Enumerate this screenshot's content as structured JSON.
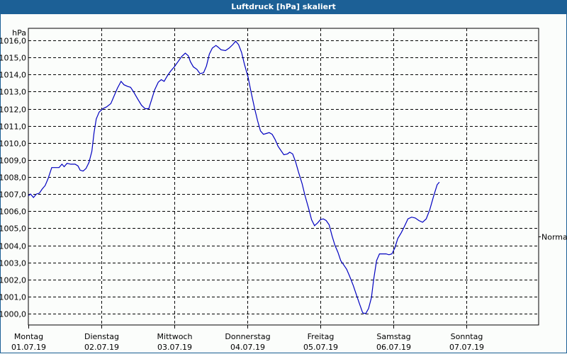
{
  "window": {
    "title": "Luftdruck [hPa] skaliert"
  },
  "chart_data": {
    "type": "line",
    "title": "Luftdruck [hPa] skaliert",
    "ylabel": "hPa",
    "xlabel": "",
    "ylim": [
      1000.0,
      1016.0
    ],
    "grid": true,
    "y_ticks": [
      "1016,0",
      "1015,0",
      "1014,0",
      "1013,0",
      "1012,0",
      "1011,0",
      "1010,0",
      "1009,0",
      "1008,0",
      "1007,0",
      "1006,0",
      "1005,0",
      "1004,0",
      "1003,0",
      "1002,0",
      "1001,0",
      "1000,0"
    ],
    "x_ticks": [
      {
        "day": "Montag",
        "date": "01.07.19"
      },
      {
        "day": "Dienstag",
        "date": "02.07.19"
      },
      {
        "day": "Mittwoch",
        "date": "03.07.19"
      },
      {
        "day": "Donnerstag",
        "date": "04.07.19"
      },
      {
        "day": "Freitag",
        "date": "05.07.19"
      },
      {
        "day": "Samstag",
        "date": "06.07.19"
      },
      {
        "day": "Sonntag",
        "date": "07.07.19"
      }
    ],
    "reference_marker": {
      "label": "Normal",
      "value": 1004.5
    },
    "line_color": "#0000c0",
    "series": [
      {
        "name": "Luftdruck",
        "unit": "hPa",
        "points_day_value": [
          [
            0.0,
            1006.9
          ],
          [
            0.03,
            1007.0
          ],
          [
            0.07,
            1006.8
          ],
          [
            0.11,
            1007.0
          ],
          [
            0.15,
            1007.05
          ],
          [
            0.19,
            1007.3
          ],
          [
            0.23,
            1007.5
          ],
          [
            0.27,
            1007.9
          ],
          [
            0.32,
            1008.55
          ],
          [
            0.38,
            1008.55
          ],
          [
            0.42,
            1008.55
          ],
          [
            0.46,
            1008.75
          ],
          [
            0.49,
            1008.6
          ],
          [
            0.53,
            1008.8
          ],
          [
            0.58,
            1008.75
          ],
          [
            0.64,
            1008.75
          ],
          [
            0.68,
            1008.65
          ],
          [
            0.71,
            1008.4
          ],
          [
            0.75,
            1008.35
          ],
          [
            0.79,
            1008.5
          ],
          [
            0.83,
            1008.85
          ],
          [
            0.87,
            1009.5
          ],
          [
            0.9,
            1010.6
          ],
          [
            0.93,
            1011.4
          ],
          [
            0.97,
            1011.8
          ],
          [
            1.02,
            1012.0
          ],
          [
            1.07,
            1012.1
          ],
          [
            1.13,
            1012.3
          ],
          [
            1.17,
            1012.7
          ],
          [
            1.22,
            1013.2
          ],
          [
            1.27,
            1013.6
          ],
          [
            1.31,
            1013.4
          ],
          [
            1.36,
            1013.3
          ],
          [
            1.4,
            1013.25
          ],
          [
            1.44,
            1013.0
          ],
          [
            1.5,
            1012.55
          ],
          [
            1.55,
            1012.2
          ],
          [
            1.6,
            1012.0
          ],
          [
            1.65,
            1012.0
          ],
          [
            1.69,
            1012.55
          ],
          [
            1.73,
            1013.1
          ],
          [
            1.78,
            1013.55
          ],
          [
            1.82,
            1013.7
          ],
          [
            1.86,
            1013.6
          ],
          [
            1.9,
            1013.9
          ],
          [
            1.95,
            1014.2
          ],
          [
            2.0,
            1014.45
          ],
          [
            2.05,
            1014.75
          ],
          [
            2.1,
            1015.05
          ],
          [
            2.15,
            1015.25
          ],
          [
            2.19,
            1015.1
          ],
          [
            2.22,
            1014.75
          ],
          [
            2.26,
            1014.45
          ],
          [
            2.31,
            1014.3
          ],
          [
            2.35,
            1014.05
          ],
          [
            2.4,
            1014.1
          ],
          [
            2.44,
            1014.5
          ],
          [
            2.48,
            1015.2
          ],
          [
            2.52,
            1015.55
          ],
          [
            2.57,
            1015.7
          ],
          [
            2.6,
            1015.6
          ],
          [
            2.64,
            1015.45
          ],
          [
            2.7,
            1015.4
          ],
          [
            2.75,
            1015.55
          ],
          [
            2.8,
            1015.75
          ],
          [
            2.84,
            1015.95
          ],
          [
            2.88,
            1015.75
          ],
          [
            2.92,
            1015.3
          ],
          [
            2.96,
            1014.6
          ],
          [
            3.01,
            1013.85
          ],
          [
            3.05,
            1013.0
          ],
          [
            3.1,
            1012.0
          ],
          [
            3.14,
            1011.3
          ],
          [
            3.18,
            1010.7
          ],
          [
            3.22,
            1010.5
          ],
          [
            3.26,
            1010.55
          ],
          [
            3.3,
            1010.6
          ],
          [
            3.34,
            1010.5
          ],
          [
            3.38,
            1010.2
          ],
          [
            3.42,
            1009.8
          ],
          [
            3.46,
            1009.55
          ],
          [
            3.5,
            1009.3
          ],
          [
            3.55,
            1009.35
          ],
          [
            3.58,
            1009.45
          ],
          [
            3.62,
            1009.35
          ],
          [
            3.66,
            1008.9
          ],
          [
            3.7,
            1008.3
          ],
          [
            3.75,
            1007.6
          ],
          [
            3.79,
            1006.9
          ],
          [
            3.84,
            1006.15
          ],
          [
            3.88,
            1005.5
          ],
          [
            3.92,
            1005.15
          ],
          [
            3.96,
            1005.3
          ],
          [
            4.0,
            1005.5
          ],
          [
            4.04,
            1005.55
          ],
          [
            4.08,
            1005.45
          ],
          [
            4.12,
            1005.2
          ],
          [
            4.16,
            1004.55
          ],
          [
            4.2,
            1004.0
          ],
          [
            4.24,
            1003.6
          ],
          [
            4.28,
            1003.1
          ],
          [
            4.32,
            1002.85
          ],
          [
            4.36,
            1002.6
          ],
          [
            4.4,
            1002.2
          ],
          [
            4.45,
            1001.65
          ],
          [
            4.49,
            1001.15
          ],
          [
            4.53,
            1000.65
          ],
          [
            4.58,
            1000.05
          ],
          [
            4.62,
            1000.0
          ],
          [
            4.66,
            1000.3
          ],
          [
            4.7,
            1000.95
          ],
          [
            4.73,
            1002.0
          ],
          [
            4.77,
            1003.1
          ],
          [
            4.81,
            1003.5
          ],
          [
            4.85,
            1003.5
          ],
          [
            4.9,
            1003.5
          ],
          [
            4.94,
            1003.45
          ],
          [
            4.98,
            1003.5
          ],
          [
            5.02,
            1003.85
          ],
          [
            5.06,
            1004.4
          ],
          [
            5.11,
            1004.75
          ],
          [
            5.15,
            1005.1
          ],
          [
            5.2,
            1005.55
          ],
          [
            5.25,
            1005.65
          ],
          [
            5.3,
            1005.6
          ],
          [
            5.35,
            1005.45
          ],
          [
            5.4,
            1005.35
          ],
          [
            5.45,
            1005.55
          ],
          [
            5.5,
            1006.1
          ],
          [
            5.55,
            1006.85
          ],
          [
            5.6,
            1007.55
          ],
          [
            5.63,
            1007.7
          ]
        ]
      }
    ]
  }
}
